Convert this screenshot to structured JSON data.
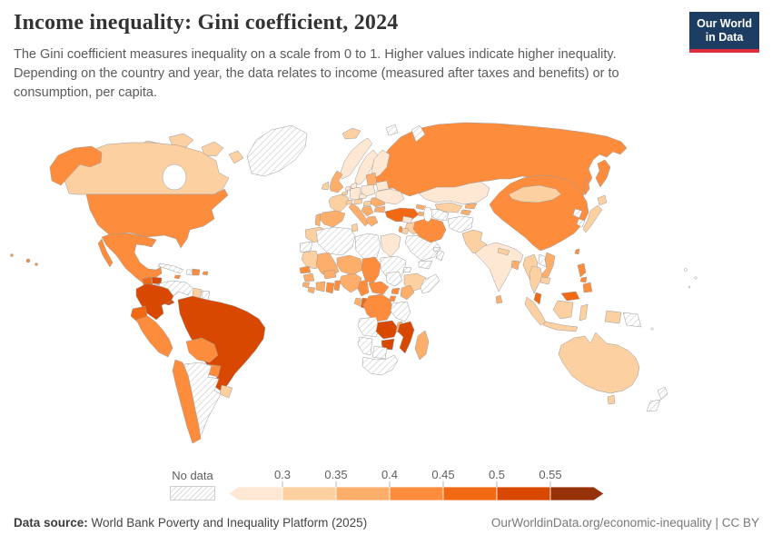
{
  "header": {
    "title": "Income inequality: Gini coefficient, 2024",
    "subtitle": "The Gini coefficient measures inequality on a scale from 0 to 1. Higher values indicate higher inequality. Depending on the country and year, the data relates to income (measured after taxes and benefits) or to consumption, per capita.",
    "logo_line1": "Our World",
    "logo_line2": "in Data",
    "logo_bg": "#1d3d63",
    "logo_bar": "#dc2f3e"
  },
  "legend": {
    "no_data_label": "No data",
    "tick_labels": [
      "0.3",
      "0.35",
      "0.4",
      "0.45",
      "0.5",
      "0.55"
    ]
  },
  "footer": {
    "source_label": "Data source:",
    "source_text": " World Bank Poverty and Inequality Platform (2025)",
    "right_text": "OurWorldinData.org/economic-inequality | CC BY"
  },
  "chart_data": {
    "type": "choropleth-map",
    "title": "Income inequality: Gini coefficient, 2024",
    "unit": "Gini coefficient (scale 0 to 1)",
    "legend_position": "bottom",
    "no_data_style": "gray diagonal hatching",
    "bins": [
      {
        "range": "<0.3",
        "color": "#fee8d3"
      },
      {
        "range": "0.3-0.35",
        "color": "#fdd0a2"
      },
      {
        "range": "0.35-0.4",
        "color": "#fdae6b"
      },
      {
        "range": "0.4-0.45",
        "color": "#fd8d3c"
      },
      {
        "range": "0.45-0.5",
        "color": "#f16913"
      },
      {
        "range": "0.5-0.55",
        "color": "#d94801"
      },
      {
        "range": ">0.55",
        "color": "#96320a"
      }
    ],
    "regions": {
      "greenland": "no-data",
      "canada": 2,
      "usa": 4,
      "mexico": 4,
      "guatemala": 5,
      "honduras": 6,
      "el-salvador": 4,
      "nicaragua": "no-data",
      "costa-rica": 5,
      "panama": 6,
      "cuba": "no-data",
      "jamaica": 4,
      "haiti": "no-data",
      "dominican-republic": 4,
      "puerto-rico": 4,
      "colombia": 6,
      "venezuela": "no-data",
      "guyana": 2,
      "suriname": "no-data",
      "brazil": 6,
      "ecuador": 5,
      "peru": 4,
      "bolivia": 4,
      "paraguay": 4,
      "uruguay": 2,
      "chile": 4,
      "argentina": "no-data",
      "iceland": 2,
      "norway": 1,
      "sweden": 1,
      "finland": 1,
      "denmark": 1,
      "united-kingdom": 3,
      "ireland": 2,
      "netherlands": 1,
      "belgium": 2,
      "germany": 1,
      "france": 2,
      "spain": 3,
      "portugal": 3,
      "italy": 3,
      "switzerland": 2,
      "austria": 2,
      "czechia": 1,
      "poland": 1,
      "hungary": 2,
      "balkans": 3,
      "greece": 3,
      "romania": 3,
      "bulgaria": 3,
      "baltic-states": 3,
      "belarus": 1,
      "ukraine": 1,
      "turkey": 5,
      "georgia": 3,
      "armenia": 3,
      "azerbaijan": 4,
      "syria": 1,
      "iraq": 2,
      "jordan": 2,
      "israel": 4,
      "saudi-arabia": "no-data",
      "yemen": "no-data",
      "oman": "no-data",
      "uae": "no-data",
      "iran": 4,
      "russia": 4,
      "svalbard": "no-data",
      "novaya-zemlya": "no-data",
      "kazakhstan": 1,
      "uzbekistan": 2,
      "turkmenistan": "no-data",
      "kyrgyzstan": 3,
      "tajikistan": 3,
      "afghanistan": "no-data",
      "pakistan": 2,
      "india": 1,
      "nepal": 2,
      "bangladesh": 3,
      "sri-lanka": 3,
      "china": 4,
      "mongolia": 2,
      "north-korea": "no-data",
      "south-korea": "no-data",
      "japan": 2,
      "taiwan": 4,
      "myanmar": 2,
      "laos": "no-data",
      "thailand": 2,
      "vietnam": 3,
      "cambodia": 2,
      "malaysia": 5,
      "indonesia": 2,
      "philippines": 4,
      "papua-new-guinea": "no-data",
      "australia": 2,
      "new-zealand": "no-data",
      "morocco": 2,
      "western-sahara": "no-data",
      "algeria": "no-data",
      "tunisia": 2,
      "libya": "no-data",
      "egypt": 1,
      "mauritania": 2,
      "mali": 3,
      "niger": 3,
      "chad": 4,
      "sudan": "no-data",
      "eritrea": "no-data",
      "ethiopia": 2,
      "somalia": "no-data",
      "south-sudan": "no-data",
      "senegal": 4,
      "guinea": 3,
      "sierra-leone": 3,
      "liberia": 3,
      "cote-divoire": 3,
      "ghana": 4,
      "togo-benin": 4,
      "burkina-faso": 3,
      "nigeria": 3,
      "cameroon": 4,
      "central-african-republic": 4,
      "uganda": 4,
      "kenya": 3,
      "rwanda-burundi": 4,
      "gabon": 3,
      "congo": 5,
      "dr-congo": 4,
      "tanzania": "no-data",
      "angola": "no-data",
      "zambia": 6,
      "malawi": 3,
      "mozambique": 6,
      "zimbabwe": 6,
      "botswana": "no-data",
      "namibia": "no-data",
      "south-africa": "no-data",
      "madagascar": 3
    }
  }
}
